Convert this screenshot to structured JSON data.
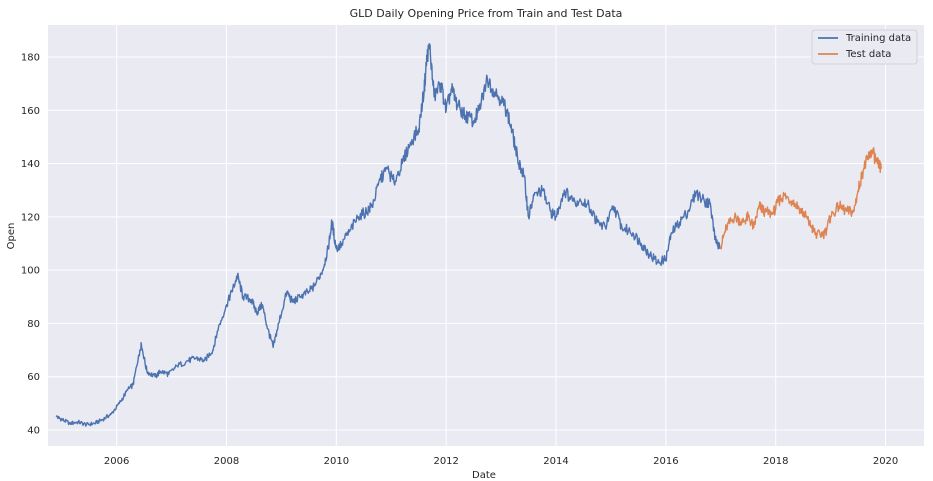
{
  "chart_data": {
    "type": "line",
    "title": "GLD Daily Opening Price from Train and Test Data",
    "xlabel": "Date",
    "ylabel": "Open",
    "xlim": [
      2004.75,
      2020.7
    ],
    "ylim": [
      34,
      192
    ],
    "x_ticks": [
      2006,
      2008,
      2010,
      2012,
      2014,
      2016,
      2018,
      2020
    ],
    "y_ticks": [
      40,
      60,
      80,
      100,
      120,
      140,
      160,
      180
    ],
    "grid": true,
    "legend_position": "top-right",
    "background": "#eaeaf2",
    "series": [
      {
        "name": "Training data",
        "color": "#4c72b0",
        "points": [
          [
            2004.9,
            45
          ],
          [
            2005.0,
            44
          ],
          [
            2005.15,
            42.5
          ],
          [
            2005.3,
            43
          ],
          [
            2005.45,
            42
          ],
          [
            2005.6,
            42.5
          ],
          [
            2005.75,
            44
          ],
          [
            2005.9,
            46
          ],
          [
            2006.05,
            50
          ],
          [
            2006.2,
            55
          ],
          [
            2006.3,
            57
          ],
          [
            2006.4,
            68
          ],
          [
            2006.45,
            72
          ],
          [
            2006.55,
            62
          ],
          [
            2006.7,
            60
          ],
          [
            2006.8,
            62
          ],
          [
            2006.95,
            61
          ],
          [
            2007.1,
            64
          ],
          [
            2007.3,
            66
          ],
          [
            2007.45,
            67
          ],
          [
            2007.6,
            66
          ],
          [
            2007.75,
            70
          ],
          [
            2007.85,
            78
          ],
          [
            2008.0,
            87
          ],
          [
            2008.1,
            92
          ],
          [
            2008.2,
            98
          ],
          [
            2008.3,
            90
          ],
          [
            2008.45,
            89
          ],
          [
            2008.55,
            84
          ],
          [
            2008.65,
            87
          ],
          [
            2008.75,
            78
          ],
          [
            2008.85,
            71
          ],
          [
            2008.95,
            80
          ],
          [
            2009.1,
            92
          ],
          [
            2009.2,
            88
          ],
          [
            2009.35,
            90
          ],
          [
            2009.5,
            92
          ],
          [
            2009.6,
            94
          ],
          [
            2009.75,
            100
          ],
          [
            2009.85,
            108
          ],
          [
            2009.92,
            118
          ],
          [
            2010.0,
            108
          ],
          [
            2010.1,
            110
          ],
          [
            2010.25,
            115
          ],
          [
            2010.4,
            120
          ],
          [
            2010.55,
            122
          ],
          [
            2010.65,
            124
          ],
          [
            2010.8,
            134
          ],
          [
            2010.92,
            138
          ],
          [
            2011.05,
            133
          ],
          [
            2011.2,
            140
          ],
          [
            2011.35,
            148
          ],
          [
            2011.5,
            153
          ],
          [
            2011.6,
            168
          ],
          [
            2011.65,
            180
          ],
          [
            2011.7,
            184
          ],
          [
            2011.78,
            165
          ],
          [
            2011.9,
            170
          ],
          [
            2012.0,
            160
          ],
          [
            2012.1,
            168
          ],
          [
            2012.2,
            162
          ],
          [
            2012.35,
            158
          ],
          [
            2012.5,
            156
          ],
          [
            2012.6,
            160
          ],
          [
            2012.75,
            172
          ],
          [
            2012.85,
            168
          ],
          [
            2013.0,
            164
          ],
          [
            2013.1,
            160
          ],
          [
            2013.2,
            152
          ],
          [
            2013.3,
            142
          ],
          [
            2013.42,
            135
          ],
          [
            2013.5,
            120
          ],
          [
            2013.6,
            128
          ],
          [
            2013.75,
            130
          ],
          [
            2013.9,
            122
          ],
          [
            2014.0,
            120
          ],
          [
            2014.15,
            130
          ],
          [
            2014.3,
            126
          ],
          [
            2014.45,
            126
          ],
          [
            2014.6,
            124
          ],
          [
            2014.75,
            118
          ],
          [
            2014.9,
            116
          ],
          [
            2015.05,
            124
          ],
          [
            2015.2,
            116
          ],
          [
            2015.4,
            114
          ],
          [
            2015.55,
            110
          ],
          [
            2015.7,
            106
          ],
          [
            2015.85,
            103
          ],
          [
            2016.0,
            104
          ],
          [
            2016.1,
            114
          ],
          [
            2016.25,
            118
          ],
          [
            2016.4,
            122
          ],
          [
            2016.55,
            129
          ],
          [
            2016.7,
            126
          ],
          [
            2016.8,
            125
          ],
          [
            2016.9,
            112
          ],
          [
            2016.98,
            108
          ]
        ]
      },
      {
        "name": "Test data",
        "color": "#dd8452",
        "points": [
          [
            2017.0,
            109
          ],
          [
            2017.1,
            116
          ],
          [
            2017.25,
            120
          ],
          [
            2017.4,
            118
          ],
          [
            2017.5,
            120
          ],
          [
            2017.6,
            116
          ],
          [
            2017.7,
            124
          ],
          [
            2017.8,
            122
          ],
          [
            2017.95,
            121
          ],
          [
            2018.05,
            126
          ],
          [
            2018.15,
            128
          ],
          [
            2018.3,
            126
          ],
          [
            2018.45,
            123
          ],
          [
            2018.55,
            120
          ],
          [
            2018.65,
            116
          ],
          [
            2018.75,
            113
          ],
          [
            2018.9,
            114
          ],
          [
            2019.0,
            120
          ],
          [
            2019.15,
            124
          ],
          [
            2019.3,
            122
          ],
          [
            2019.42,
            122
          ],
          [
            2019.5,
            130
          ],
          [
            2019.6,
            138
          ],
          [
            2019.68,
            142
          ],
          [
            2019.75,
            145
          ],
          [
            2019.85,
            140
          ],
          [
            2019.92,
            138
          ]
        ]
      }
    ]
  }
}
